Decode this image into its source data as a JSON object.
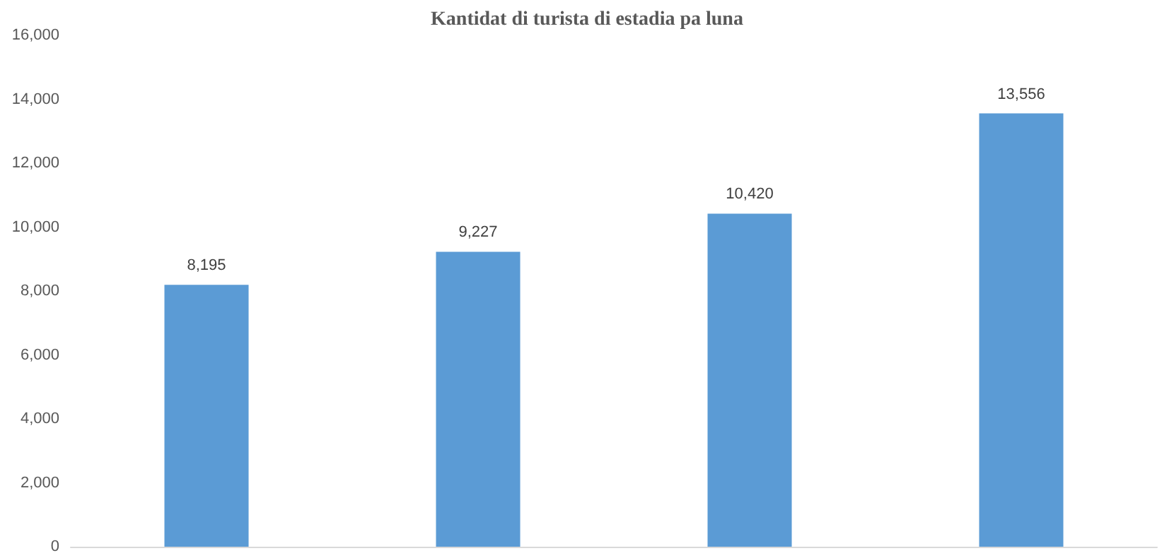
{
  "chart_data": {
    "type": "bar",
    "title": "Kantidat di turista di estadia pa luna",
    "categories": [
      null,
      null,
      null,
      null
    ],
    "values": [
      8195,
      9227,
      10420,
      13556
    ],
    "value_labels": [
      "8,195",
      "9,227",
      "10,420",
      "13,556"
    ],
    "color": "#5b9bd5",
    "ylim": [
      0,
      16000
    ],
    "yticks": [
      0,
      {
        "value": 2000,
        "label": "2,000"
      },
      {
        "value": 4000,
        "label": "4,000"
      },
      {
        "value": 6000,
        "label": "6,000"
      },
      {
        "value": 8000,
        "label": "8,000"
      },
      {
        "value": 10000,
        "label": "10,000"
      },
      {
        "value": 12000,
        "label": "12,000"
      },
      {
        "value": 14000,
        "label": "14,000"
      },
      {
        "value": 16000,
        "label": "16,000"
      }
    ],
    "grid": false
  }
}
